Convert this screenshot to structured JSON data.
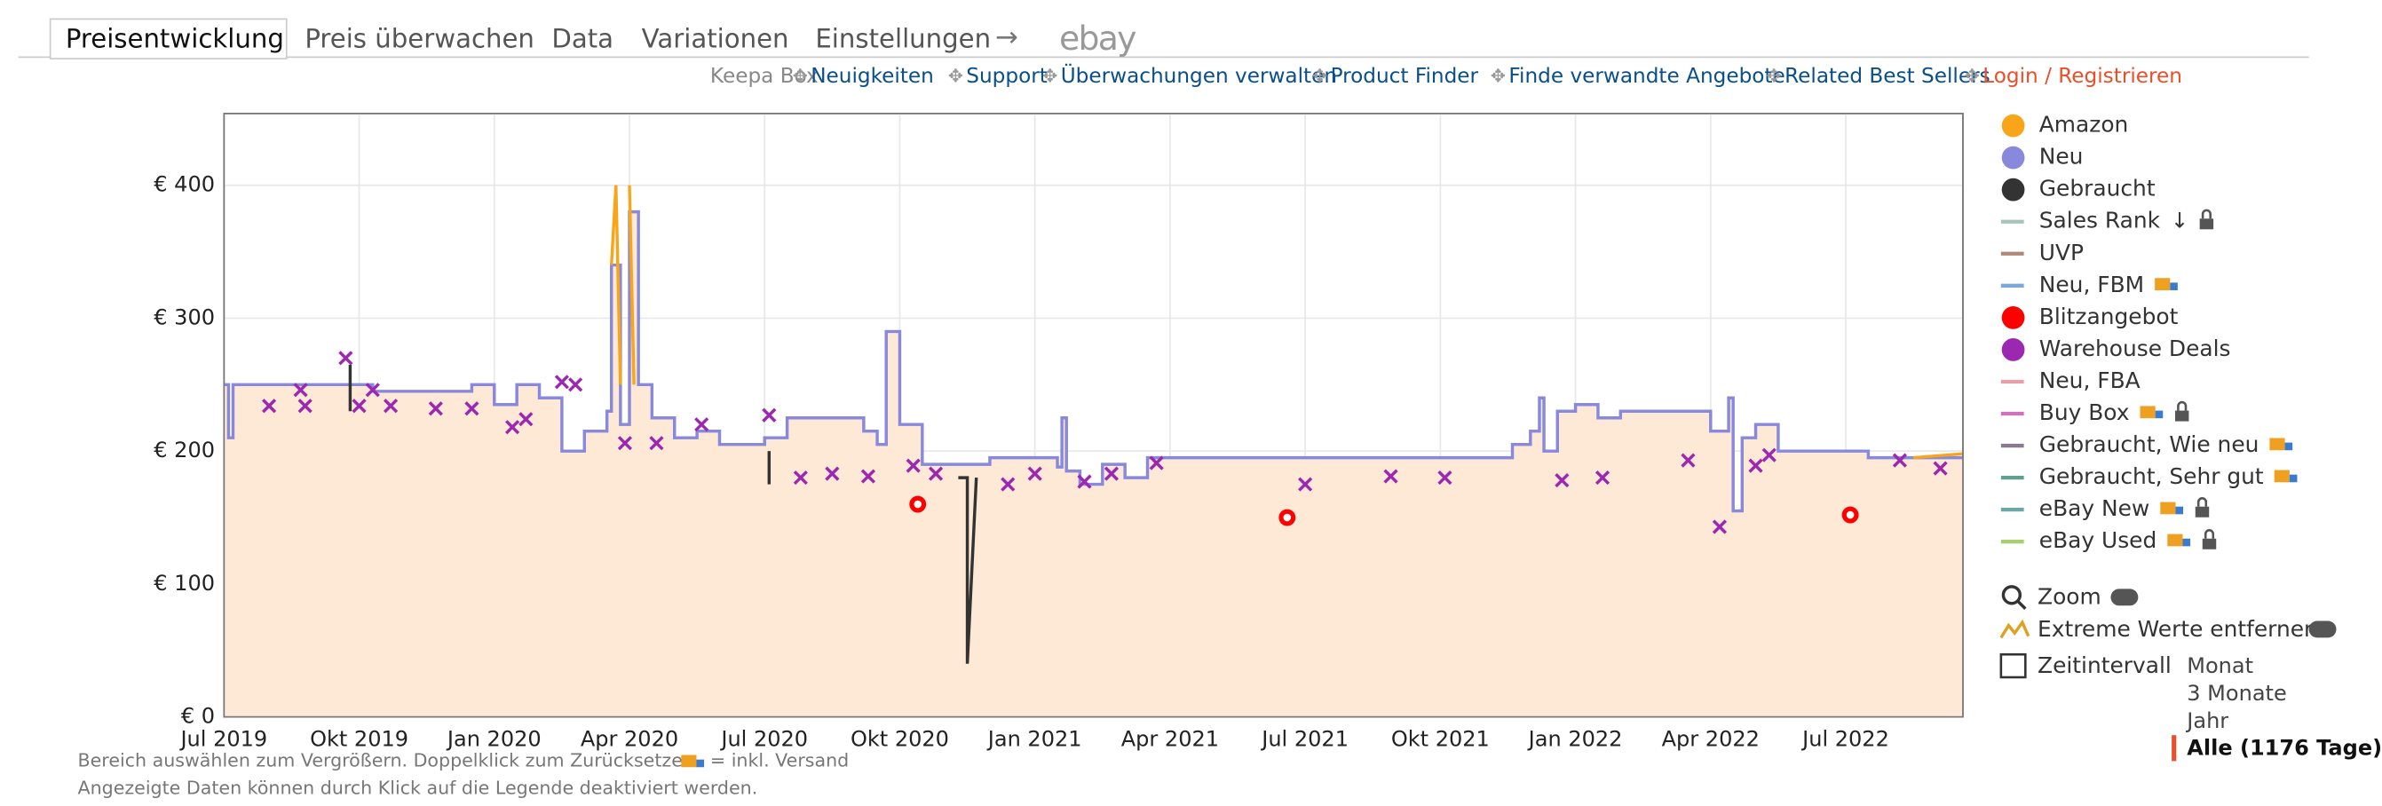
{
  "tabs": [
    "Preisentwicklung",
    "Preis überwachen",
    "Data",
    "Variationen",
    "Einstellungen"
  ],
  "tab_arrow": "→",
  "ebay": "ebay",
  "links": [
    "Keepa Box",
    "Neuigkeiten",
    "Support",
    "Überwachungen verwalten",
    "Product Finder",
    "Finde verwandte Angebote",
    "Related Best Sellers",
    "Login / Registrieren"
  ],
  "chart_data": {
    "type": "line",
    "xlim": [
      0,
      38.6
    ],
    "xticks": [
      {
        "value": 0,
        "label": "Jul 2019"
      },
      {
        "value": 3,
        "label": "Okt 2019"
      },
      {
        "value": 6,
        "label": "Jan 2020"
      },
      {
        "value": 9,
        "label": "Apr 2020"
      },
      {
        "value": 12,
        "label": "Jul 2020"
      },
      {
        "value": 15,
        "label": "Okt 2020"
      },
      {
        "value": 18,
        "label": "Jan 2021"
      },
      {
        "value": 21,
        "label": "Apr 2021"
      },
      {
        "value": 24,
        "label": "Jul 2021"
      },
      {
        "value": 27,
        "label": "Okt 2021"
      },
      {
        "value": 30,
        "label": "Jan 2022"
      },
      {
        "value": 33,
        "label": "Apr 2022"
      },
      {
        "value": 36,
        "label": "Jul 2022"
      }
    ],
    "ylim": [
      0,
      454
    ],
    "yticks": [
      {
        "value": 0,
        "label": "€ 0"
      },
      {
        "value": 100,
        "label": "€ 100"
      },
      {
        "value": 200,
        "label": "€ 200"
      },
      {
        "value": 300,
        "label": "€ 300"
      },
      {
        "value": 400,
        "label": "€ 400"
      }
    ],
    "grid": true,
    "series": [
      {
        "name": "Amazon",
        "color": "#f9a51a",
        "style": "line",
        "x": [
          8.6,
          8.7,
          8.8,
          8.9,
          9.0,
          9.1,
          9.2,
          37.5,
          38.6
        ],
        "values": [
          340,
          400,
          250,
          null,
          400,
          250,
          null,
          195,
          198
        ]
      },
      {
        "name": "Neu",
        "color": "#8888dd",
        "style": "area",
        "x": [
          0,
          0.1,
          0.2,
          3,
          3.3,
          5,
          5.5,
          6,
          6.5,
          7,
          7.5,
          8,
          8.5,
          8.6,
          8.8,
          9,
          9.2,
          9.5,
          10,
          10.5,
          11,
          12,
          12.5,
          14,
          14.2,
          14.5,
          14.7,
          14.9,
          15,
          15.5,
          17,
          18.5,
          18.6,
          18.7,
          19,
          19.5,
          20,
          20.5,
          24,
          28.4,
          28.6,
          29,
          29.2,
          29.3,
          29.6,
          30,
          30.5,
          31,
          32.5,
          33,
          33.4,
          33.5,
          33.7,
          34,
          34.5,
          36,
          36.5,
          38,
          38.6
        ],
        "values": [
          250,
          210,
          250,
          250,
          245,
          245,
          250,
          235,
          250,
          240,
          200,
          215,
          230,
          340,
          220,
          380,
          250,
          225,
          210,
          215,
          205,
          210,
          225,
          225,
          215,
          205,
          290,
          290,
          220,
          190,
          195,
          188,
          225,
          185,
          175,
          190,
          180,
          195,
          195,
          195,
          205,
          215,
          240,
          200,
          230,
          235,
          225,
          230,
          230,
          215,
          240,
          155,
          210,
          220,
          200,
          200,
          195,
          195,
          195
        ]
      },
      {
        "name": "Gebraucht",
        "color": "#333333",
        "style": "line",
        "x": [
          2.8,
          2.8,
          null,
          16.3,
          16.5,
          16.5,
          16.7,
          null,
          12.1,
          12.1
        ],
        "values": [
          265,
          230,
          null,
          180,
          180,
          40,
          180,
          null,
          200,
          175
        ]
      },
      {
        "name": "Sales Rank",
        "color": "#a8c4b8",
        "style": "legend",
        "icons": [
          "sort",
          "lock"
        ]
      },
      {
        "name": "UVP",
        "color": "#b08878",
        "style": "legend"
      },
      {
        "name": "Neu, FBM",
        "color": "#79a9d8",
        "style": "legend",
        "icons": [
          "truck"
        ]
      },
      {
        "name": "Blitzangebot",
        "color": "#ff0000",
        "style": "circle",
        "x": [
          15.4,
          23.6,
          36.1
        ],
        "values": [
          160,
          150,
          152
        ]
      },
      {
        "name": "Warehouse Deals",
        "color": "#9c27b0",
        "style": "cross",
        "x": [
          1.0,
          1.7,
          1.8,
          2.7,
          3.0,
          3.3,
          3.7,
          4.7,
          5.5,
          6.4,
          6.7,
          7.5,
          7.8,
          8.9,
          9.6,
          10.6,
          12.1,
          12.8,
          13.5,
          14.3,
          15.3,
          15.8,
          17.4,
          18.0,
          19.1,
          19.7,
          20.7,
          24.0,
          25.9,
          27.1,
          29.7,
          30.6,
          32.5,
          33.2,
          34.0,
          34.3,
          37.2,
          38.1
        ],
        "values": [
          234,
          246,
          234,
          270,
          234,
          246,
          234,
          232,
          232,
          218,
          224,
          252,
          250,
          206,
          206,
          220,
          227,
          180,
          183,
          181,
          189,
          183,
          175,
          183,
          177,
          183,
          191,
          175,
          181,
          180,
          178,
          180,
          193,
          143,
          189,
          197,
          193,
          187
        ]
      },
      {
        "name": "Neu, FBA",
        "color": "#e8a0a8",
        "style": "legend"
      },
      {
        "name": "Buy Box",
        "color": "#d070c0",
        "style": "legend",
        "icons": [
          "truck",
          "lock"
        ]
      },
      {
        "name": "Gebraucht, Wie neu",
        "color": "#8a7a90",
        "style": "legend",
        "icons": [
          "truck"
        ]
      },
      {
        "name": "Gebraucht, Sehr gut",
        "color": "#60a090",
        "style": "legend",
        "icons": [
          "truck"
        ]
      },
      {
        "name": "eBay New",
        "color": "#6aa8a8",
        "style": "legend",
        "icons": [
          "truck",
          "lock"
        ]
      },
      {
        "name": "eBay Used",
        "color": "#a8d070",
        "style": "legend",
        "icons": [
          "truck",
          "lock"
        ]
      }
    ]
  },
  "controls": {
    "zoom": "Zoom",
    "extreme": "Extreme Werte entfernen",
    "interval_label": "Zeitintervall",
    "intervals": [
      "Monat",
      "3 Monate",
      "Jahr",
      "Alle (1176 Tage)"
    ]
  },
  "footnotes": [
    "Bereich auswählen zum Vergrößern. Doppelklick zum Zurücksetzen.",
    "Angezeigte Daten können durch Klick auf die Legende deaktiviert werden."
  ],
  "shipping_note": "= inkl. Versand"
}
